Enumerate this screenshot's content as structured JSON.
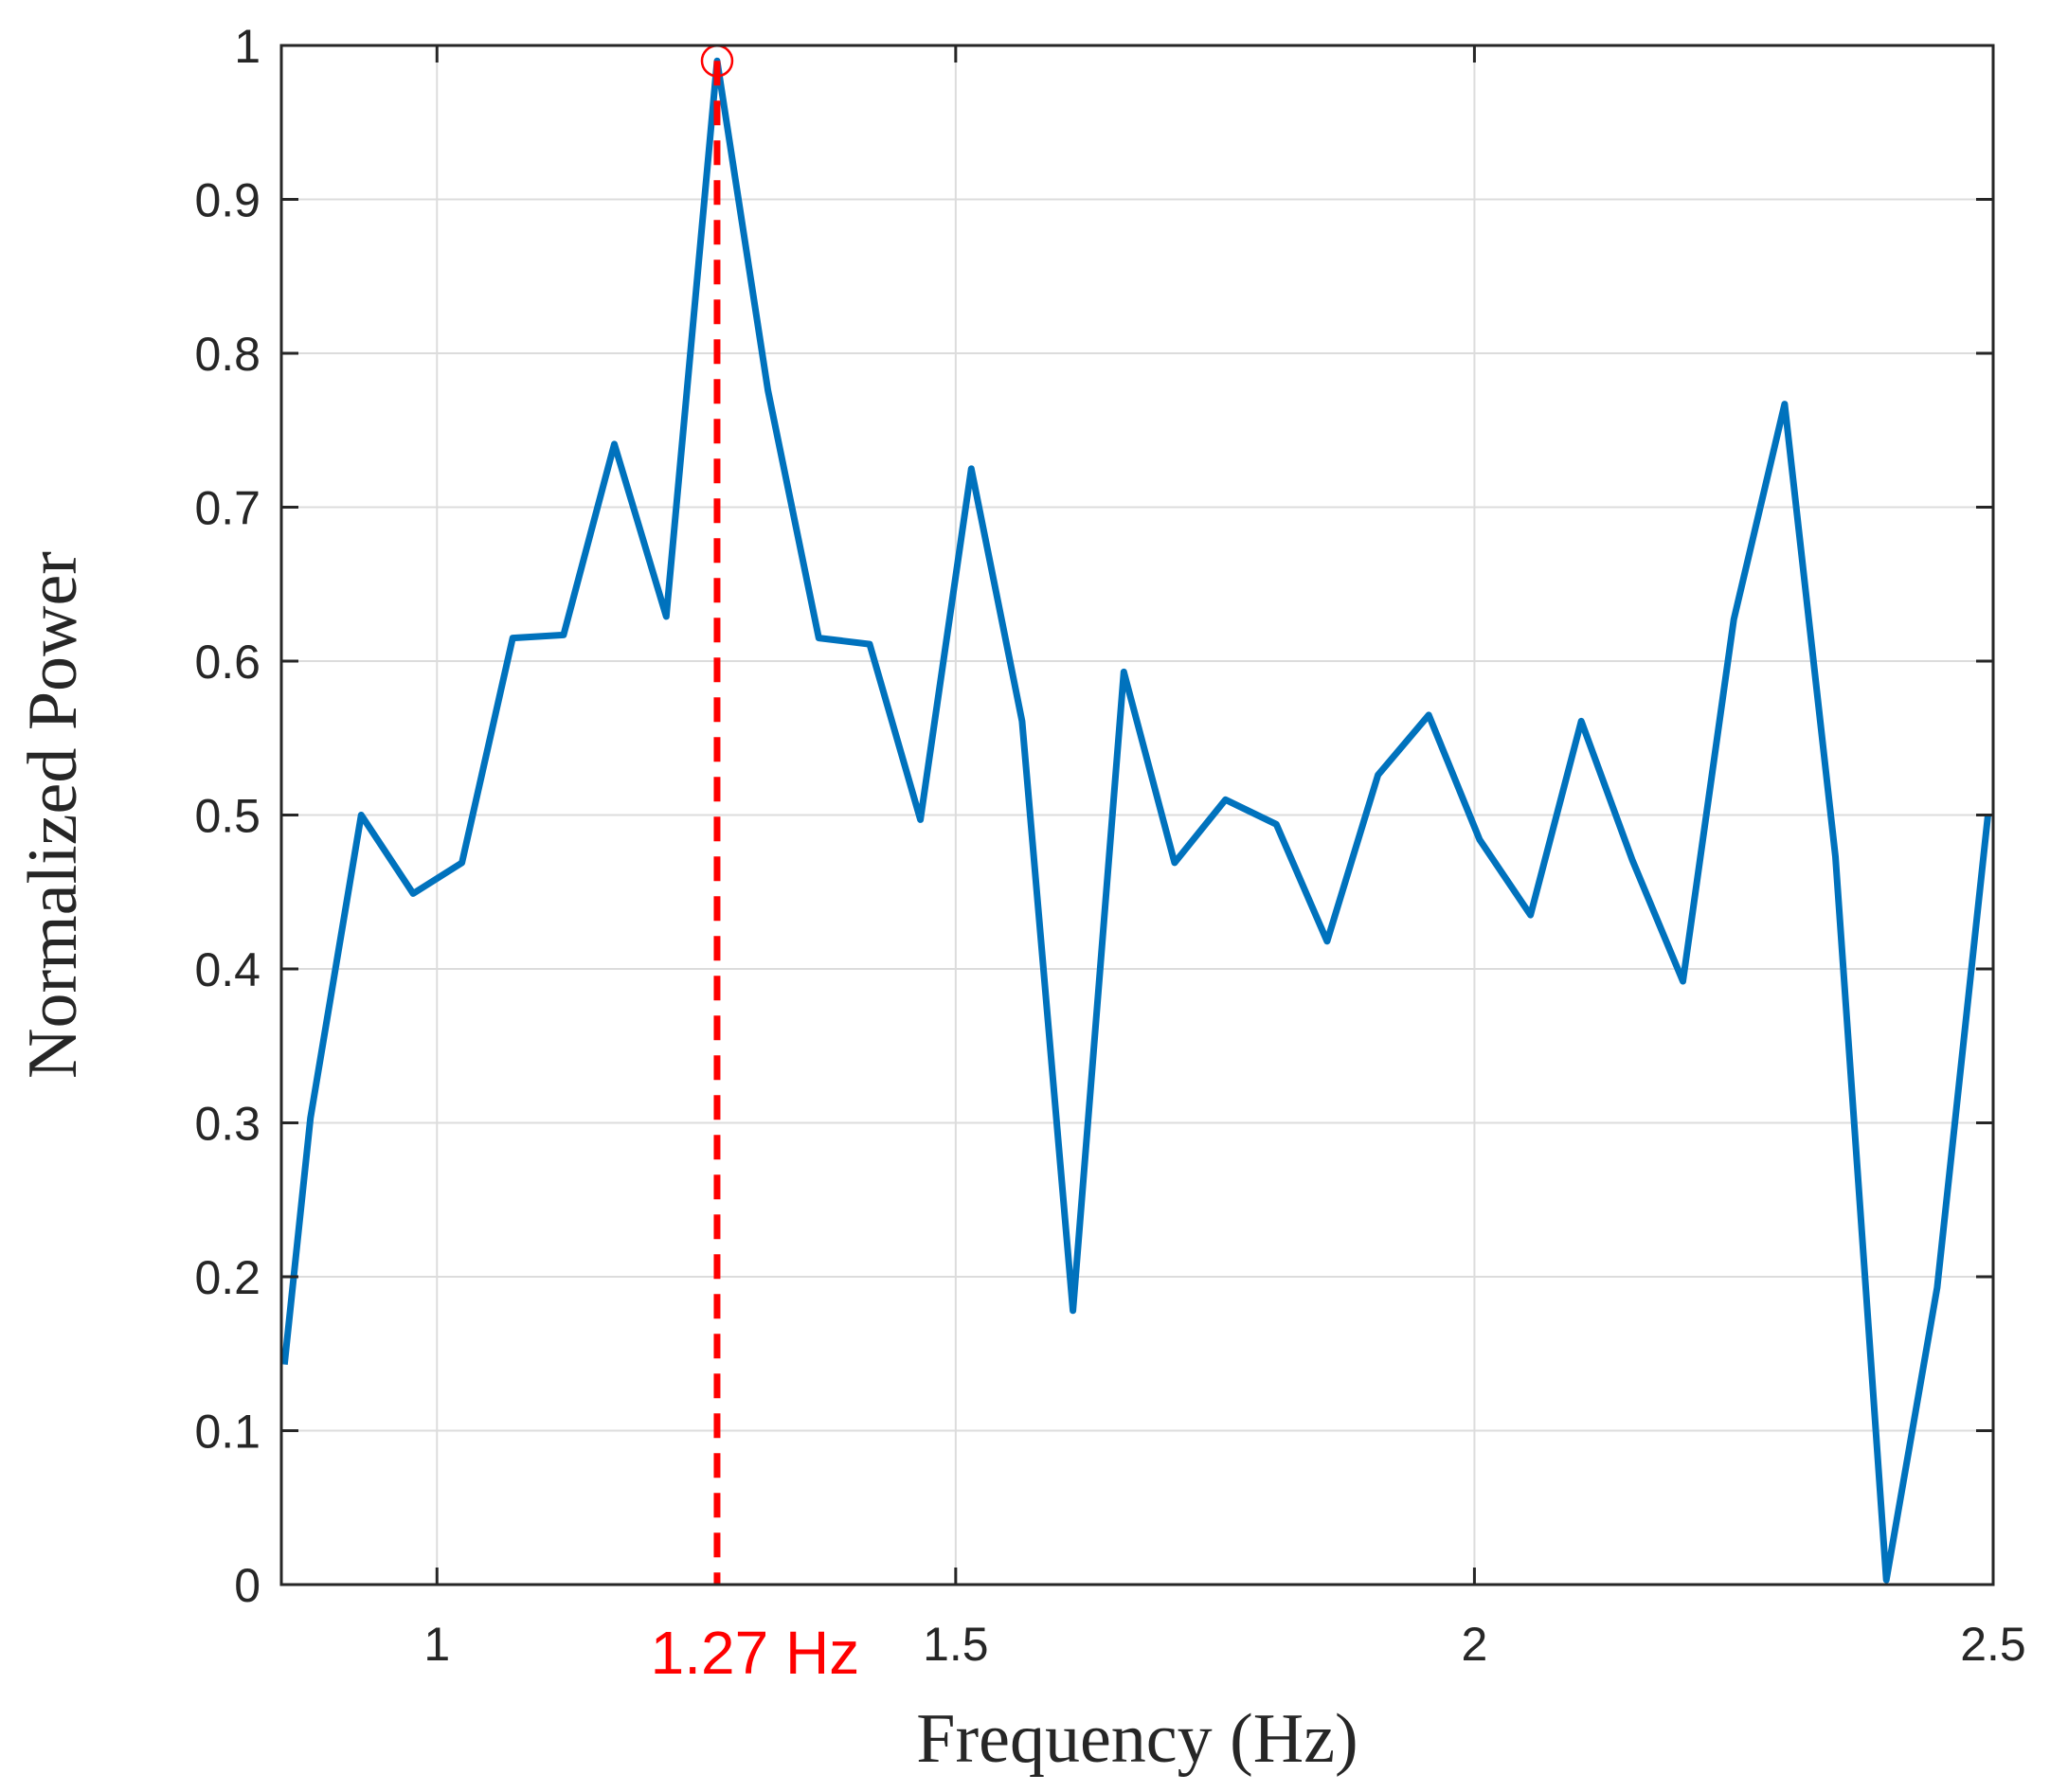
{
  "chart_data": {
    "type": "line",
    "title": "",
    "xlabel": "Frequency (Hz)",
    "ylabel": "Normalized Power",
    "xlim": [
      0.85,
      2.5
    ],
    "ylim": [
      0,
      1
    ],
    "grid": true,
    "x_ticks": [
      1,
      1.5,
      2,
      2.5
    ],
    "x_tick_labels": [
      "1",
      "1.5",
      "2",
      "2.5"
    ],
    "y_ticks": [
      0,
      0.1,
      0.2,
      0.3,
      0.4,
      0.5,
      0.6,
      0.7,
      0.8,
      0.9,
      1
    ],
    "y_tick_labels": [
      "0",
      "0.1",
      "0.2",
      "0.3",
      "0.4",
      "0.5",
      "0.6",
      "0.7",
      "0.8",
      "0.9",
      "1"
    ],
    "series": [
      {
        "color": "#0072bd",
        "x": [
          0.853,
          0.878,
          0.927,
          0.977,
          1.024,
          1.073,
          1.122,
          1.171,
          1.221,
          1.27,
          1.319,
          1.368,
          1.417,
          1.466,
          1.515,
          1.564,
          1.613,
          1.662,
          1.711,
          1.76,
          1.809,
          1.858,
          1.907,
          1.956,
          2.005,
          2.054,
          2.103,
          2.152,
          2.201,
          2.25,
          2.299,
          2.348,
          2.397,
          2.446,
          2.495
        ],
        "y": [
          0.143,
          0.303,
          0.5,
          0.449,
          0.469,
          0.615,
          0.617,
          0.741,
          0.629,
          0.99,
          0.776,
          0.615,
          0.611,
          0.497,
          0.725,
          0.561,
          0.178,
          0.593,
          0.469,
          0.51,
          0.494,
          0.418,
          0.526,
          0.565,
          0.484,
          0.435,
          0.561,
          0.471,
          0.392,
          0.627,
          0.767,
          0.473,
          0.003,
          0.193,
          0.5
        ]
      }
    ],
    "annotations": [
      {
        "type": "vertical-dashed-line",
        "x": 1.27,
        "color": "#ff0000",
        "label": "1.27 Hz",
        "marker": "circle",
        "marker_y": 0.99
      }
    ]
  }
}
